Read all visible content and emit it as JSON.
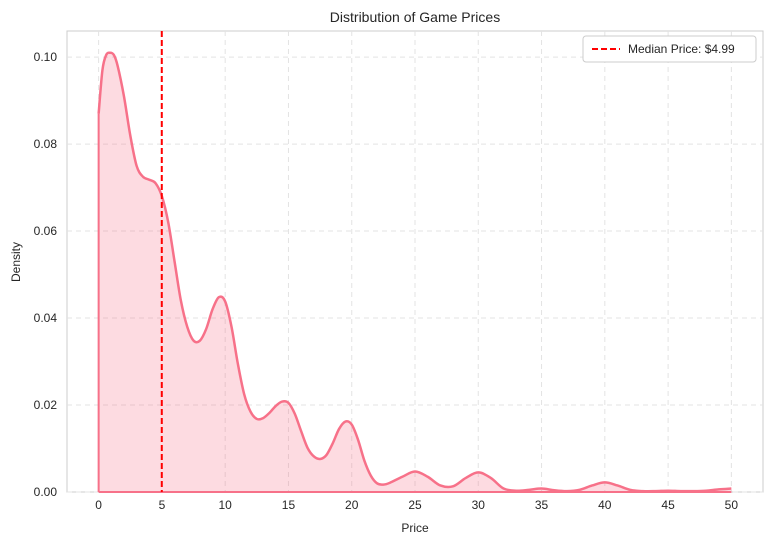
{
  "chart_data": {
    "type": "area",
    "title": "Distribution of Game Prices",
    "xlabel": "Price",
    "ylabel": "Density",
    "xlim": [
      -2.5,
      52.5
    ],
    "ylim": [
      0,
      0.106
    ],
    "x_ticks": [
      0,
      5,
      10,
      15,
      20,
      25,
      30,
      35,
      40,
      45,
      50
    ],
    "y_ticks": [
      0.0,
      0.02,
      0.04,
      0.06,
      0.08,
      0.1
    ],
    "y_tick_labels": [
      "0.00",
      "0.02",
      "0.04",
      "0.06",
      "0.08",
      "0.10"
    ],
    "grid": true,
    "legend_position": "top-right",
    "series": [
      {
        "color": "#f77189",
        "x": [
          0,
          0.3,
          0.6,
          0.9,
          1.2,
          1.5,
          2,
          2.5,
          3,
          3.5,
          4,
          4.5,
          5,
          5.5,
          6,
          6.5,
          7,
          7.5,
          8,
          8.5,
          9,
          9.5,
          10,
          10.5,
          11,
          11.5,
          12,
          12.5,
          13,
          13.5,
          14,
          14.5,
          15,
          15.5,
          16,
          16.5,
          17,
          17.5,
          18,
          18.5,
          19,
          19.5,
          20,
          20.5,
          21,
          21.5,
          22,
          22.5,
          23,
          24,
          25,
          26,
          27,
          28,
          29,
          30,
          31,
          32,
          33,
          34,
          35,
          36,
          37,
          38,
          39,
          40,
          41,
          42,
          43,
          44,
          45,
          46,
          47,
          48,
          49,
          50
        ],
        "y": [
          0.087,
          0.097,
          0.1005,
          0.101,
          0.1005,
          0.098,
          0.091,
          0.082,
          0.075,
          0.0725,
          0.0718,
          0.071,
          0.068,
          0.062,
          0.053,
          0.044,
          0.038,
          0.0348,
          0.0348,
          0.0375,
          0.042,
          0.0448,
          0.0438,
          0.038,
          0.0295,
          0.0225,
          0.0185,
          0.0168,
          0.017,
          0.0182,
          0.0198,
          0.0208,
          0.0205,
          0.018,
          0.014,
          0.0102,
          0.0082,
          0.0076,
          0.0085,
          0.0112,
          0.0145,
          0.0162,
          0.0155,
          0.012,
          0.0072,
          0.0038,
          0.002,
          0.0017,
          0.0021,
          0.0035,
          0.0047,
          0.0035,
          0.0015,
          0.0013,
          0.0032,
          0.0045,
          0.0032,
          0.0008,
          0.0003,
          0.0005,
          0.0008,
          0.0004,
          0.0002,
          0.0005,
          0.0015,
          0.0022,
          0.0015,
          0.0005,
          0.0002,
          0.0002,
          0.0003,
          0.0002,
          0.0002,
          0.0003,
          0.0006,
          0.0008
        ]
      }
    ],
    "vline": {
      "x": 4.99,
      "color": "#ff0000",
      "label": "Median Price: $4.99"
    }
  }
}
